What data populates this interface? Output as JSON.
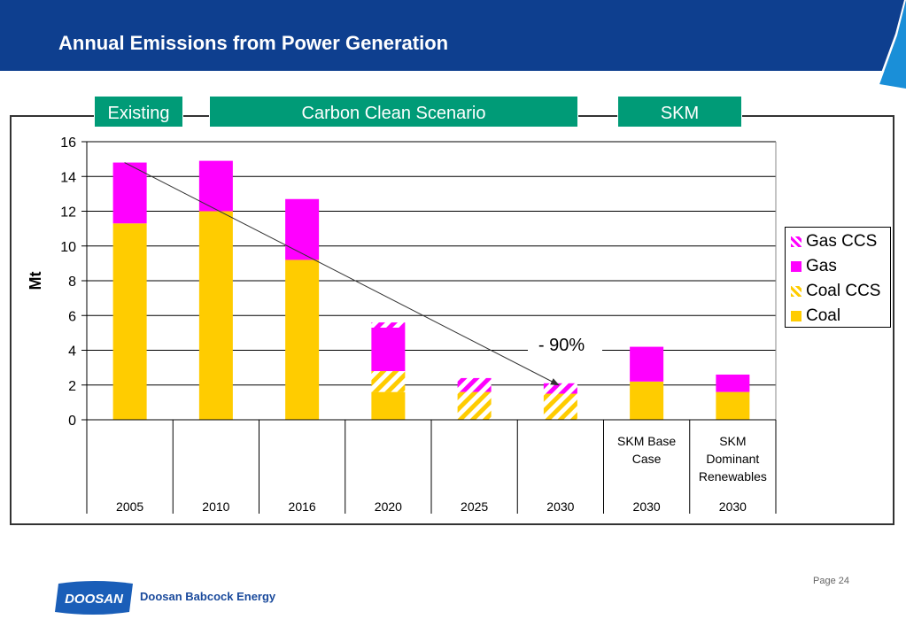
{
  "header": {
    "title": "Annual Emissions from Power Generation"
  },
  "groups": [
    {
      "label": "Existing"
    },
    {
      "label": "Carbon Clean Scenario"
    },
    {
      "label": "SKM"
    }
  ],
  "chart_data": {
    "type": "bar",
    "stacked": true,
    "ylabel": "Mt",
    "ylim": [
      0,
      16
    ],
    "yticks": [
      0,
      2,
      4,
      6,
      8,
      10,
      12,
      14,
      16
    ],
    "grid": true,
    "legend_position": "right",
    "categories": [
      {
        "top": "",
        "year": "2005"
      },
      {
        "top": "",
        "year": "2010"
      },
      {
        "top": "",
        "year": "2016"
      },
      {
        "top": "",
        "year": "2020"
      },
      {
        "top": "",
        "year": "2025"
      },
      {
        "top": "",
        "year": "2030"
      },
      {
        "top": "SKM Base Case",
        "year": "2030"
      },
      {
        "top": "SKM Dominant Renewables",
        "year": "2030"
      }
    ],
    "series": [
      {
        "name": "Coal",
        "color": "#ffcc00",
        "pattern": "solid",
        "values": [
          11.3,
          12.0,
          9.2,
          1.6,
          0,
          0,
          2.2,
          1.6
        ]
      },
      {
        "name": "Coal CCS",
        "color": "#ffcc00",
        "pattern": "hatched",
        "values": [
          0,
          0,
          0,
          1.2,
          1.6,
          1.5,
          0,
          0
        ]
      },
      {
        "name": "Gas",
        "color": "#ff00ff",
        "pattern": "solid",
        "values": [
          3.5,
          2.9,
          3.5,
          2.5,
          0,
          0,
          2.0,
          1.0
        ]
      },
      {
        "name": "Gas CCS",
        "color": "#ff00ff",
        "pattern": "hatched",
        "values": [
          0,
          0,
          0,
          0.3,
          0.8,
          0.6,
          0,
          0
        ]
      }
    ],
    "legend_order": [
      "Gas CCS",
      "Gas",
      "Coal CCS",
      "Coal"
    ],
    "annotation": {
      "text": "- 90%",
      "from": {
        "category": 0,
        "value": 14.8
      },
      "to": {
        "category": 5,
        "value": 2.0
      }
    }
  },
  "footer": {
    "page": "Page 24",
    "logo_text": "DOOSAN",
    "company": "Doosan Babcock Energy"
  }
}
